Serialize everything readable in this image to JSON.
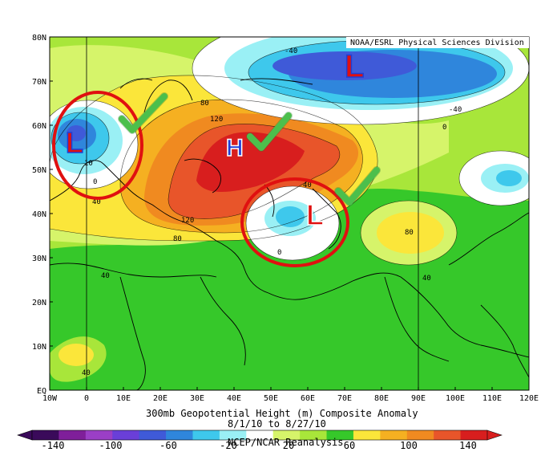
{
  "credit": "NOAA/ESRL Physical Sciences Division",
  "lat_labels": [
    "80N",
    "70N",
    "60N",
    "50N",
    "40N",
    "30N",
    "20N",
    "10N",
    "EQ"
  ],
  "lon_labels": [
    "10W",
    "0",
    "10E",
    "20E",
    "30E",
    "40E",
    "50E",
    "60E",
    "70E",
    "80E",
    "90E",
    "100E",
    "110E",
    "120E"
  ],
  "caption": {
    "title": "300mb Geopotential Height (m) Composite Anomaly",
    "dates": "8/1/10 to 8/27/10",
    "source": "NCEP/NCAR Reanalysis"
  },
  "colorbar": {
    "labels": [
      "-140",
      "-100",
      "-60",
      "-20",
      "20",
      "60",
      "100",
      "140"
    ],
    "colors": [
      "#3a0a5a",
      "#7f1f9a",
      "#9b3fc6",
      "#6a3fd8",
      "#3f5ad8",
      "#2f86dc",
      "#3ec8ec",
      "#9af0f5",
      "#ffffff",
      "#d6f46a",
      "#a8e63a",
      "#36c82a",
      "#fbe63a",
      "#f5b021",
      "#f08a20",
      "#e8552a",
      "#d81e1e"
    ]
  },
  "contour_labels": [
    "-40",
    "-40",
    "0",
    "80",
    "120",
    "10",
    "0",
    "40",
    "120",
    "80",
    "40",
    "0",
    "80",
    "40",
    "40",
    "40"
  ],
  "markers": {
    "low_west": "L",
    "low_arctic": "L",
    "low_central": "L",
    "high": "H"
  },
  "colors": {
    "ocean_green": "#36c82a",
    "low_circle": "#e01010",
    "check": "#4cbf4c",
    "marker_red": "#e01010",
    "marker_blue": "#1f3fd6"
  }
}
